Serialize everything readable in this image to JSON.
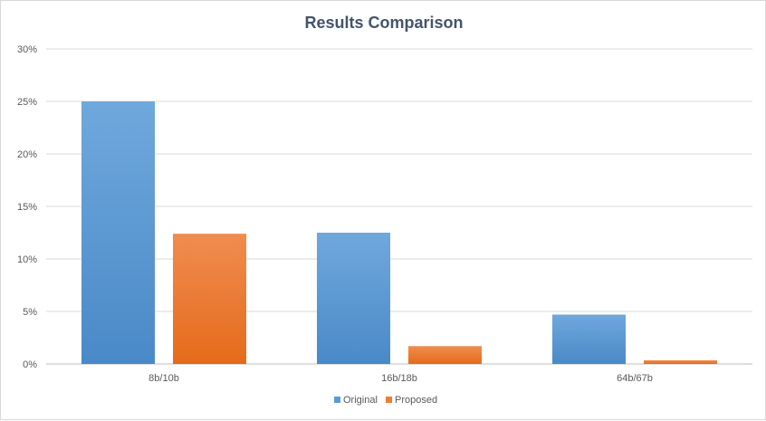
{
  "chart_data": {
    "type": "bar",
    "title": "Results Comparison",
    "categories": [
      "8b/10b",
      "16b/18b",
      "64b/67b"
    ],
    "series": [
      {
        "name": "Original",
        "values": [
          25.0,
          12.5,
          4.7
        ],
        "color": "#5b9bd5"
      },
      {
        "name": "Proposed",
        "values": [
          12.4,
          1.7,
          0.35
        ],
        "color": "#ed7d31"
      }
    ],
    "ylim": [
      0,
      30
    ],
    "yticks": [
      "0%",
      "5%",
      "10%",
      "15%",
      "20%",
      "25%",
      "30%"
    ],
    "ytick_values": [
      0,
      5,
      10,
      15,
      20,
      25,
      30
    ],
    "grid": true,
    "legend_position": "bottom",
    "colors": {
      "gridline": "#d9d9d9",
      "text": "#595959",
      "title": "#44546a"
    }
  }
}
